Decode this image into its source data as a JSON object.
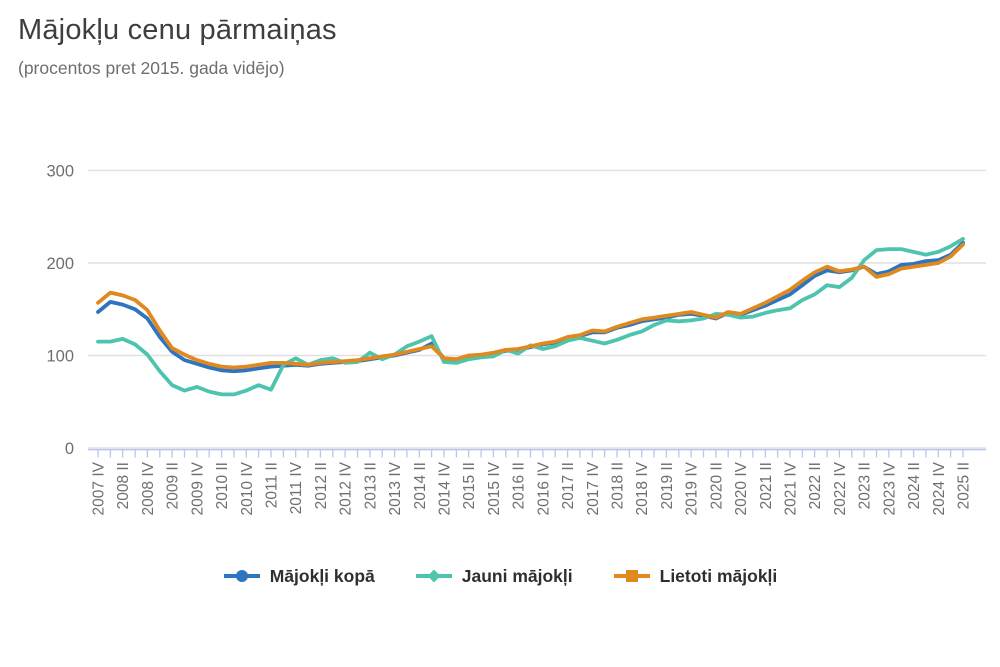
{
  "title": "Mājokļu cenu pārmaiņas",
  "subtitle": "(procentos pret 2015. gada vidējo)",
  "colors": {
    "total": "#2e74c0",
    "new": "#4ec4ae",
    "used": "#e0891f",
    "grid": "#e1e1e1",
    "axis": "#b6c7eb",
    "axis_labels": "#6f6f6f",
    "title": "#3e3e3e",
    "subtitle": "#6e6e6e",
    "legend_text": "#2f2f2f",
    "background": "#ffffff"
  },
  "legend": [
    {
      "id": "total",
      "label": "Mājokļi kopā",
      "marker": "circle"
    },
    {
      "id": "new",
      "label": "Jauni mājokļi",
      "marker": "diamond"
    },
    {
      "id": "used",
      "label": "Lietoti mājokļi",
      "marker": "square"
    }
  ],
  "chart_data": {
    "type": "line",
    "title": "Mājokļu cenu pārmaiņas",
    "subtitle": "(procentos pret 2015. gada vidējo)",
    "xlabel": "",
    "ylabel": "",
    "ylim": [
      0,
      300
    ],
    "yticks": [
      0,
      100,
      200,
      300
    ],
    "grid": true,
    "legend_position": "bottom",
    "x_label_every": 2,
    "x": [
      "2007 IV",
      "2008 I",
      "2008 II",
      "2008 III",
      "2008 IV",
      "2009 I",
      "2009 II",
      "2009 III",
      "2009 IV",
      "2010 I",
      "2010 II",
      "2010 III",
      "2010 IV",
      "2011 I",
      "2011 II",
      "2011 III",
      "2011 IV",
      "2012 I",
      "2012 II",
      "2012 III",
      "2012 IV",
      "2013 I",
      "2013 II",
      "2013 III",
      "2013 IV",
      "2014 I",
      "2014 II",
      "2014 III",
      "2014 IV",
      "2015 I",
      "2015 II",
      "2015 III",
      "2015 IV",
      "2016 I",
      "2016 II",
      "2016 III",
      "2016 IV",
      "2017 I",
      "2017 II",
      "2017 III",
      "2017 IV",
      "2018 I",
      "2018 II",
      "2018 III",
      "2018 IV",
      "2019 I",
      "2019 II",
      "2019 III",
      "2019 IV",
      "2020 I",
      "2020 II",
      "2020 III",
      "2020 IV",
      "2021 I",
      "2021 II",
      "2021 III",
      "2021 IV",
      "2022 I",
      "2022 II",
      "2022 III",
      "2022 IV",
      "2023 I",
      "2023 II",
      "2023 III",
      "2023 IV",
      "2024 I",
      "2024 II",
      "2024 III",
      "2024 IV",
      "2025 I",
      "2025 II"
    ],
    "x_tick_labels_shown": [
      "2007 IV",
      "2008 II",
      "2008 IV",
      "2009 II",
      "2009 IV",
      "2010 II",
      "2010 IV",
      "2011 II",
      "2011 IV",
      "2012 II",
      "2012 IV",
      "2013 II",
      "2013 IV",
      "2014 II",
      "2014 IV",
      "2015 II",
      "2015 IV",
      "2016 II",
      "2016 IV",
      "2017 II",
      "2017 IV",
      "2018 II",
      "2018 IV",
      "2019 II",
      "2019 IV",
      "2020 II",
      "2020 IV",
      "2021 II",
      "2021 IV",
      "2022 II",
      "2022 IV",
      "2023 II",
      "2023 IV",
      "2024 II",
      "2024 IV",
      "2025 II"
    ],
    "series": [
      {
        "id": "total",
        "name": "Mājokļi kopā",
        "color": "#2e74c0",
        "values": [
          147,
          158,
          155,
          150,
          140,
          120,
          104,
          95,
          91,
          87,
          84,
          83,
          84,
          86,
          88,
          89,
          90,
          89,
          91,
          92,
          93,
          94,
          96,
          98,
          100,
          103,
          106,
          113,
          97,
          95,
          99,
          100,
          102,
          105,
          106,
          109,
          112,
          114,
          119,
          121,
          125,
          125,
          130,
          133,
          137,
          139,
          141,
          144,
          145,
          143,
          140,
          146,
          144,
          149,
          154,
          160,
          166,
          176,
          186,
          192,
          190,
          192,
          196,
          188,
          191,
          198,
          199,
          202,
          203,
          209,
          222
        ]
      },
      {
        "id": "new",
        "name": "Jauni mājokļi",
        "color": "#4ec4ae",
        "values": [
          115,
          115,
          118,
          112,
          101,
          83,
          68,
          62,
          66,
          61,
          58,
          58,
          62,
          68,
          63,
          90,
          97,
          90,
          95,
          97,
          92,
          93,
          103,
          96,
          101,
          110,
          115,
          121,
          93,
          92,
          96,
          98,
          99,
          106,
          102,
          111,
          107,
          110,
          116,
          119,
          116,
          113,
          117,
          122,
          126,
          133,
          138,
          137,
          138,
          140,
          145,
          144,
          141,
          142,
          146,
          149,
          151,
          160,
          166,
          176,
          174,
          184,
          203,
          214,
          215,
          215,
          212,
          209,
          212,
          218,
          226
        ]
      },
      {
        "id": "used",
        "name": "Lietoti mājokļi",
        "color": "#e0891f",
        "values": [
          157,
          168,
          165,
          160,
          149,
          127,
          108,
          101,
          95,
          91,
          88,
          87,
          88,
          90,
          92,
          92,
          91,
          90,
          92,
          93,
          94,
          95,
          97,
          99,
          101,
          104,
          107,
          110,
          97,
          96,
          100,
          101,
          103,
          106,
          107,
          110,
          113,
          115,
          120,
          122,
          127,
          126,
          131,
          135,
          139,
          141,
          143,
          145,
          147,
          144,
          141,
          147,
          145,
          151,
          157,
          164,
          171,
          181,
          190,
          196,
          191,
          193,
          196,
          185,
          188,
          194,
          196,
          198,
          200,
          207,
          220
        ]
      }
    ]
  }
}
